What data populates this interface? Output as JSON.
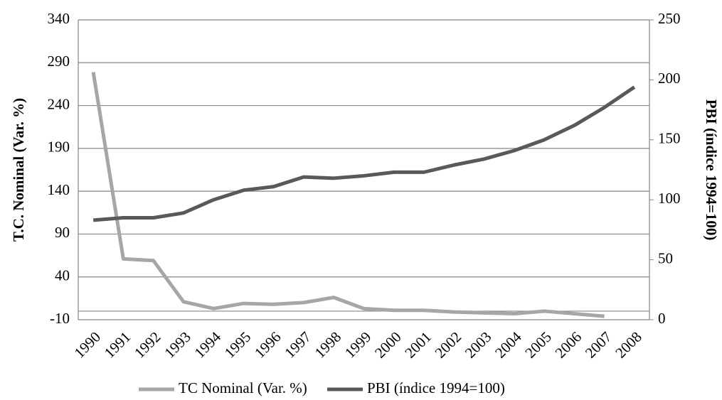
{
  "chart_data": {
    "type": "line",
    "y_label": "T.C. Nominal (Var. %)",
    "y2_label": "PBI (índice 1994=100)",
    "categories": [
      "1990",
      "1991",
      "1992",
      "1993",
      "1994",
      "1995",
      "1996",
      "1997",
      "1998",
      "1999",
      "2000",
      "2001",
      "2002",
      "2003",
      "2004",
      "2005",
      "2006",
      "2007",
      "2008"
    ],
    "series": [
      {
        "name": "TC Nominal (Var. %)",
        "color": "#a6a6a6",
        "axis": "y",
        "values": [
          279,
          61,
          59,
          11,
          3,
          9,
          8,
          10,
          16,
          3,
          1,
          1,
          -1,
          -2,
          -3,
          0,
          -3,
          -6,
          null
        ]
      },
      {
        "name": "PBI (índice 1994=100)",
        "color": "#595959",
        "axis": "y2",
        "values": [
          83,
          85,
          85,
          89,
          100,
          108,
          111,
          119,
          118,
          120,
          123,
          123,
          129,
          134,
          141,
          150,
          162,
          177,
          194
        ]
      }
    ],
    "ylim": [
      -10,
      340
    ],
    "yticks": [
      -10,
      40,
      90,
      140,
      190,
      240,
      290,
      340
    ],
    "y2lim": [
      0,
      250
    ],
    "y2ticks": [
      0,
      50,
      100,
      150,
      200,
      250
    ],
    "grid": true,
    "legend": "bottom"
  }
}
